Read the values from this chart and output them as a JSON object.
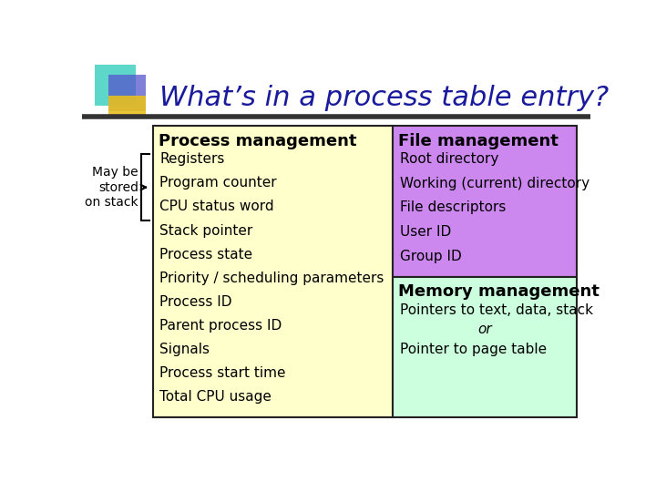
{
  "title": "What’s in a process table entry?",
  "title_color": "#1a1a9c",
  "title_fontsize": 22,
  "bg_color": "#ffffff",
  "left_col_bg": "#ffffcc",
  "right_top_bg": "#cc88ee",
  "right_bot_bg": "#ccffdd",
  "border_color": "#222222",
  "proc_mgmt_title": "Process management",
  "proc_mgmt_items": [
    "Registers",
    "Program counter",
    "CPU status word",
    "Stack pointer",
    "Process state",
    "Priority / scheduling parameters",
    "Process ID",
    "Parent process ID",
    "Signals",
    "Process start time",
    "Total CPU usage"
  ],
  "file_mgmt_title": "File management",
  "file_mgmt_items": [
    "Root directory",
    "Working (current) directory",
    "File descriptors",
    "User ID",
    "Group ID"
  ],
  "mem_mgmt_title": "Memory management",
  "mem_mgmt_items": [
    "Pointers to text, data, stack",
    "or",
    "Pointer to page table"
  ],
  "mem_mgmt_italic_idx": 1,
  "side_label": "May be\nstored\non stack",
  "side_label_fontsize": 10,
  "header_fontsize": 13,
  "item_fontsize": 11
}
